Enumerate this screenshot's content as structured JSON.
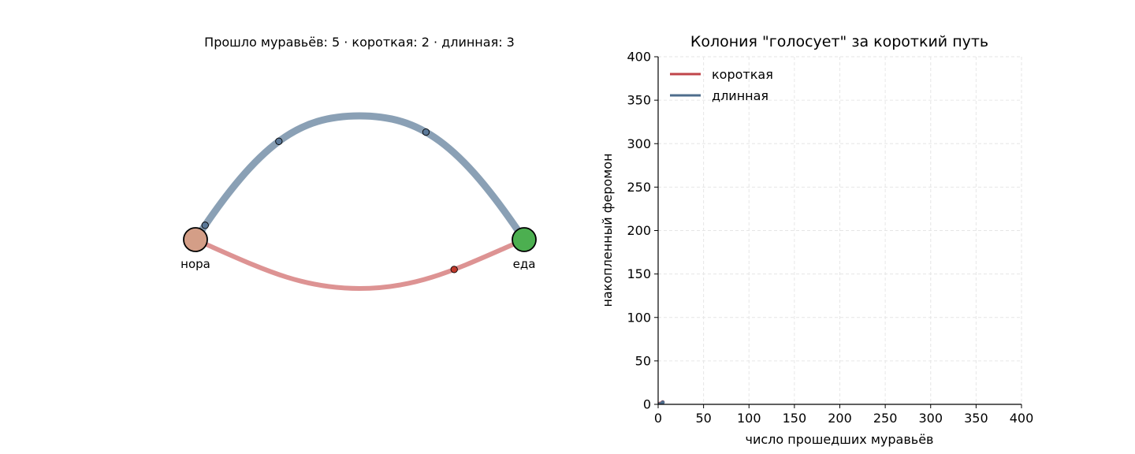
{
  "left_panel": {
    "status_text": "Прошло муравьёв: 5 · короткая: 2 · длинная: 3",
    "nest_label": "нора",
    "food_label": "еда",
    "colors": {
      "nest": "#d49e87",
      "food": "#4caf50",
      "long_path": "#8aa0b5",
      "short_path": "#dd9393",
      "ant_long": "#5a7898",
      "ant_short": "#c0392b"
    },
    "ants_on_long_path_fraction": [
      0.04,
      0.3,
      0.66
    ],
    "ants_on_short_path_fraction": [
      0.78
    ]
  },
  "chart_data": {
    "type": "line",
    "title": "Колония \"голосует\" за короткий путь",
    "xlabel": "число прошедших муравьёв",
    "ylabel": "накопленный феромон",
    "xlim": [
      0,
      400
    ],
    "ylim": [
      0,
      400
    ],
    "xticks": [
      0,
      50,
      100,
      150,
      200,
      250,
      300,
      350,
      400
    ],
    "yticks": [
      0,
      50,
      100,
      150,
      200,
      250,
      300,
      350,
      400
    ],
    "grid": true,
    "legend_position": "top-left",
    "series": [
      {
        "name": "короткая",
        "color": "#c0454a",
        "x": [
          0,
          1,
          2,
          3,
          4,
          5
        ],
        "y": [
          1,
          1.5,
          2,
          2,
          2.5,
          2.5
        ]
      },
      {
        "name": "длинная",
        "color": "#4e6d8c",
        "x": [
          0,
          1,
          2,
          3,
          4,
          5
        ],
        "y": [
          1,
          1,
          1.2,
          1.5,
          1.8,
          2.2
        ]
      }
    ]
  }
}
